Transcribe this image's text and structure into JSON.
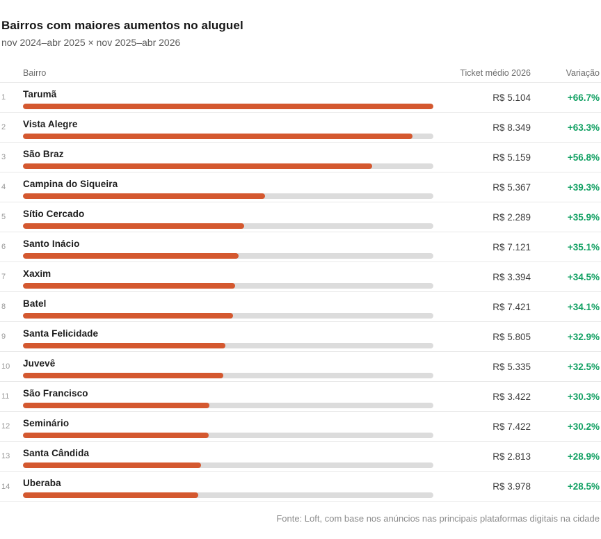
{
  "title": "Bairros com maiores aumentos no aluguel",
  "subtitle": "nov 2024–abr 2025 × nov 2025–abr 2026",
  "columns": {
    "bairro": "Bairro",
    "ticket": "Ticket médio 2026",
    "variacao": "Variação"
  },
  "footer": "Fonte: Loft, com base nos anúncios nas principais plataformas digitais na cidade",
  "colors": {
    "bar": "#d4582f",
    "track": "#dcdcdc",
    "positive": "#10a062"
  },
  "chart_data": {
    "type": "bar",
    "title": "Bairros com maiores aumentos no aluguel",
    "subtitle": "nov 2024–abr 2025 × nov 2025–abr 2026",
    "orientation": "horizontal",
    "xlabel": "Variação (%)",
    "ylabel": "Bairro",
    "xlim": [
      0,
      66.7
    ],
    "ranks": [
      1,
      2,
      3,
      4,
      5,
      6,
      7,
      8,
      9,
      10,
      11,
      12,
      13,
      14
    ],
    "categories": [
      "Tarumã",
      "Vista Alegre",
      "São Braz",
      "Campina do Siqueira",
      "Sítio Cercado",
      "Santo Inácio",
      "Xaxim",
      "Batel",
      "Santa Felicidade",
      "Juvevê",
      "São Francisco",
      "Seminário",
      "Santa Cândida",
      "Uberaba"
    ],
    "values": [
      66.7,
      63.3,
      56.8,
      39.3,
      35.9,
      35.1,
      34.5,
      34.1,
      32.9,
      32.5,
      30.3,
      30.2,
      28.9,
      28.5
    ],
    "variation_labels": [
      "+66.7%",
      "+63.3%",
      "+56.8%",
      "+39.3%",
      "+35.9%",
      "+35.1%",
      "+34.5%",
      "+34.1%",
      "+32.9%",
      "+32.5%",
      "+30.3%",
      "+30.2%",
      "+28.9%",
      "+28.5%"
    ],
    "tickets": [
      "R$ 5.104",
      "R$ 8.349",
      "R$ 5.159",
      "R$ 5.367",
      "R$ 2.289",
      "R$ 7.121",
      "R$ 3.394",
      "R$ 7.421",
      "R$ 5.805",
      "R$ 5.335",
      "R$ 3.422",
      "R$ 7.422",
      "R$ 2.813",
      "R$ 3.978"
    ]
  }
}
